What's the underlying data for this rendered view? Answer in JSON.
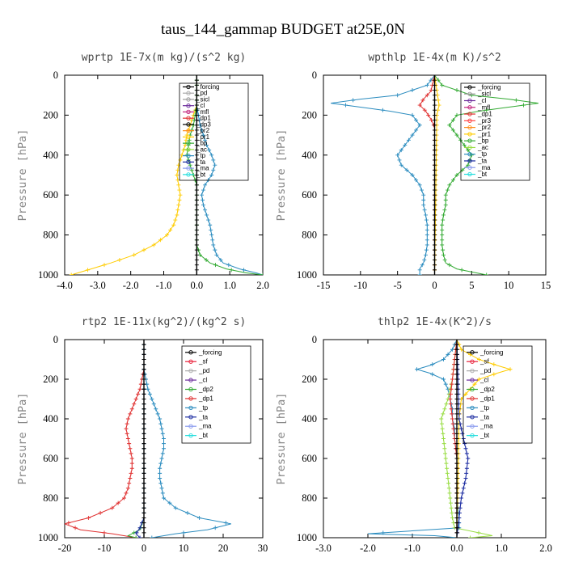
{
  "title": "taus_144_gammap  BUDGET at25E,0N",
  "colors": {
    "_forcing": "#000000",
    "_sf": "#e8203a",
    "_pd": "#aaaaaa",
    "_sicl": "#999999",
    "_cl": "#6a2a9a",
    "_mfl": "#c0207a",
    "_dp1": "#e03030",
    "_dp2": "#33aa33",
    "_pr3": "#ff4444",
    "_pr2": "#ff8c1a",
    "_pr1": "#ffcc00",
    "_bp": "#33aa33",
    "_ac": "#99dd44",
    "_tp": "#2b8cbf",
    "_ta": "#1a2aa0",
    "_ma": "#8899ee",
    "_bt": "#22dddd"
  },
  "chart_data": [
    {
      "type": "line",
      "title": "wprtp  1E-7x(m kg)/(s^2 kg)",
      "ylabel": "Pressure [hPa]",
      "xlim": [
        -4.0,
        2.0
      ],
      "ylim": [
        1000,
        0
      ],
      "xticks": [
        "-4.0",
        "-3.0",
        "-2.0",
        "-1.0",
        "0.0",
        "1.0",
        "2.0"
      ],
      "yticks": [
        "0",
        "200",
        "400",
        "600",
        "800",
        "1000"
      ],
      "legend": [
        "_forcing",
        "_pd",
        "_sicl",
        "_cl",
        "_mfl",
        "_dp1",
        "_dp3",
        "_pr2",
        "_pr1",
        "_bp",
        "_ac",
        "_tp",
        "_ta",
        "_ma",
        "_bt"
      ],
      "series": [
        {
          "name": "_pr1",
          "p": [
            0,
            150,
            200,
            250,
            300,
            350,
            400,
            450,
            500,
            550,
            600,
            650,
            700,
            750,
            800,
            850,
            900,
            940,
            970,
            990,
            1000
          ],
          "x": [
            0,
            0,
            -0.1,
            -0.2,
            -0.3,
            -0.35,
            -0.45,
            -0.55,
            -0.6,
            -0.55,
            -0.5,
            -0.55,
            -0.6,
            -0.7,
            -0.9,
            -1.3,
            -1.9,
            -2.6,
            -3.2,
            -3.6,
            -3.8
          ]
        },
        {
          "name": "_tp",
          "p": [
            0,
            150,
            200,
            250,
            300,
            350,
            400,
            450,
            500,
            550,
            600,
            650,
            700,
            750,
            800,
            850,
            900,
            940,
            970,
            990,
            1000
          ],
          "x": [
            0,
            0,
            0.05,
            0.1,
            0.2,
            0.3,
            0.45,
            0.55,
            0.45,
            0.25,
            0.15,
            0.2,
            0.3,
            0.4,
            0.45,
            0.5,
            0.6,
            0.8,
            1.3,
            1.8,
            2.0
          ]
        },
        {
          "name": "_bp",
          "p": [
            0,
            150,
            200,
            250,
            300,
            350,
            400,
            450,
            500,
            550,
            600,
            650,
            700,
            750,
            800,
            850,
            900,
            940,
            970,
            990,
            1000
          ],
          "x": [
            0,
            0,
            -0.05,
            -0.1,
            -0.2,
            -0.25,
            -0.3,
            -0.2,
            -0.1,
            0,
            0,
            0,
            0,
            0,
            0,
            0,
            0.1,
            0.4,
            0.9,
            1.5,
            2.0
          ]
        },
        {
          "name": "_forcing",
          "p": [
            0,
            1000
          ],
          "x": [
            0,
            0
          ]
        }
      ]
    },
    {
      "type": "line",
      "title": "wpthlp  1E-4x(m K)/s^2",
      "ylabel": "Pressure [hPa]",
      "xlim": [
        -15,
        15
      ],
      "ylim": [
        1000,
        0
      ],
      "xticks": [
        "-15",
        "-10",
        "-5",
        "0",
        "5",
        "10",
        "15"
      ],
      "yticks": [
        "0",
        "200",
        "400",
        "600",
        "800",
        "1000"
      ],
      "legend": [
        "_forcing",
        "_sicl",
        "_cl",
        "_mfl",
        "_dp1",
        "_pr3",
        "_pr2",
        "_pr1",
        "_bp",
        "_ac",
        "_tp",
        "_ta",
        "_ma",
        "_bt"
      ],
      "series": [
        {
          "name": "_tp",
          "p": [
            0,
            50,
            100,
            120,
            140,
            160,
            180,
            200,
            250,
            300,
            350,
            400,
            450,
            500,
            550,
            600,
            650,
            700,
            750,
            800,
            850,
            900,
            940,
            970,
            1000
          ],
          "x": [
            0,
            -1,
            -5,
            -10,
            -14,
            -10,
            -6,
            -3,
            -2,
            -3,
            -4,
            -5,
            -4.5,
            -3,
            -2,
            -1.5,
            -1.5,
            -1.2,
            -1,
            -1,
            -1,
            -1.2,
            -1.5,
            -2,
            -2
          ]
        },
        {
          "name": "_bp",
          "p": [
            0,
            50,
            100,
            120,
            140,
            160,
            180,
            200,
            250,
            300,
            350,
            400,
            450,
            500,
            550,
            600,
            650,
            700,
            750,
            800,
            850,
            900,
            940,
            970,
            1000
          ],
          "x": [
            0,
            1,
            5,
            10,
            14,
            10,
            6,
            3,
            2,
            3,
            4,
            5,
            4.5,
            3,
            2,
            1.5,
            1.5,
            1.2,
            1,
            1,
            1,
            1.2,
            1.5,
            3,
            7
          ]
        },
        {
          "name": "_dp1",
          "p": [
            0,
            80,
            120,
            150,
            180,
            220,
            260,
            1000
          ],
          "x": [
            0,
            -0.5,
            -1.5,
            -2,
            -1.2,
            -0.5,
            0,
            0
          ]
        },
        {
          "name": "_pr1",
          "p": [
            0,
            100,
            150,
            200,
            1000
          ],
          "x": [
            0,
            0.4,
            0.6,
            0.3,
            0
          ]
        },
        {
          "name": "_forcing",
          "p": [
            0,
            1000
          ],
          "x": [
            0,
            0
          ]
        }
      ]
    },
    {
      "type": "line",
      "title": "rtp2  1E-11x(kg^2)/(kg^2 s)",
      "ylabel": "Pressure [hPa]",
      "xlim": [
        -20,
        30
      ],
      "ylim": [
        1000,
        0
      ],
      "xticks": [
        "-20",
        "-10",
        "0",
        "10",
        "20",
        "30"
      ],
      "yticks": [
        "0",
        "200",
        "400",
        "600",
        "800",
        "1000"
      ],
      "legend": [
        "_forcing",
        "_sf",
        "_pd",
        "_cl",
        "_dp2",
        "_dp1",
        "_tp",
        "_ta",
        "_ma",
        "_bt"
      ],
      "series": [
        {
          "name": "_dp1",
          "p": [
            0,
            150,
            200,
            250,
            300,
            350,
            400,
            450,
            500,
            550,
            600,
            650,
            700,
            750,
            800,
            850,
            900,
            930,
            960,
            980,
            1000
          ],
          "x": [
            0,
            0,
            -0.5,
            -1,
            -2,
            -3,
            -4,
            -4.5,
            -4,
            -3.5,
            -3,
            -3,
            -3.5,
            -4,
            -5,
            -8,
            -14,
            -20,
            -16,
            -8,
            -2
          ]
        },
        {
          "name": "_tp",
          "p": [
            0,
            150,
            200,
            250,
            300,
            350,
            400,
            450,
            500,
            550,
            600,
            650,
            700,
            750,
            800,
            850,
            900,
            930,
            960,
            980,
            1000
          ],
          "x": [
            0,
            0,
            0.5,
            1,
            2,
            3,
            4,
            4.5,
            5,
            5,
            4.5,
            4,
            4,
            4.5,
            5,
            8,
            14,
            22,
            16,
            8,
            2
          ]
        },
        {
          "name": "_dp2",
          "p": [
            0,
            900,
            960,
            980,
            990,
            1000
          ],
          "x": [
            0,
            0,
            -1,
            -3,
            -4,
            -2
          ]
        },
        {
          "name": "_ta",
          "p": [
            0,
            900,
            950,
            980,
            1000
          ],
          "x": [
            0,
            0,
            -1,
            -2,
            -1
          ]
        },
        {
          "name": "_forcing",
          "p": [
            0,
            1000
          ],
          "x": [
            0,
            0
          ]
        }
      ]
    },
    {
      "type": "line",
      "title": "thlp2  1E-4x(K^2)/s",
      "ylabel": "Pressure [hPa]",
      "xlim": [
        -3.0,
        2.0
      ],
      "ylim": [
        1000,
        0
      ],
      "xticks": [
        "-3.0",
        "-2.0",
        "-1.0",
        "0.0",
        "1.0",
        "2.0"
      ],
      "yticks": [
        "0",
        "200",
        "400",
        "600",
        "800",
        "1000"
      ],
      "legend": [
        "_forcing",
        "_sf",
        "_pd",
        "_cl",
        "_dp2",
        "_dp1",
        "_tp",
        "_ta",
        "_ma",
        "_bt"
      ],
      "series": [
        {
          "name": "_tp",
          "p": [
            0,
            50,
            100,
            130,
            150,
            170,
            200,
            250,
            300,
            350,
            400,
            450,
            500,
            600,
            700,
            800,
            900,
            950,
            980,
            990,
            1000
          ],
          "x": [
            0,
            -0.1,
            -0.3,
            -0.6,
            -0.9,
            -0.6,
            -0.3,
            -0.2,
            -0.15,
            -0.1,
            -0.1,
            -0.05,
            -0.05,
            0,
            0,
            0,
            0.05,
            0.05,
            -2.0,
            -0.5,
            0
          ]
        },
        {
          "name": "_pr1",
          "p": [
            0,
            50,
            100,
            130,
            150,
            170,
            200,
            250,
            300,
            400,
            1000
          ],
          "x": [
            0,
            0.1,
            0.5,
            0.9,
            1.2,
            0.9,
            0.5,
            0.3,
            0.1,
            0.05,
            0
          ]
        },
        {
          "name": "_ac",
          "p": [
            0,
            100,
            200,
            300,
            400,
            500,
            600,
            700,
            800,
            900,
            950,
            980,
            990,
            1000
          ],
          "x": [
            0,
            -0.05,
            -0.1,
            -0.2,
            -0.35,
            -0.3,
            -0.25,
            -0.2,
            -0.15,
            -0.1,
            -0.05,
            0.6,
            0.8,
            0.3
          ]
        },
        {
          "name": "_dp1",
          "p": [
            0,
            100,
            200,
            300,
            400,
            500,
            600,
            700,
            800,
            900,
            1000
          ],
          "x": [
            0,
            -0.05,
            -0.1,
            -0.15,
            -0.1,
            -0.05,
            0,
            0,
            0,
            0,
            0
          ]
        },
        {
          "name": "_ta",
          "p": [
            0,
            400,
            500,
            600,
            700,
            800,
            1000
          ],
          "x": [
            0,
            0.05,
            0.15,
            0.25,
            0.2,
            0.1,
            0
          ]
        },
        {
          "name": "_forcing",
          "p": [
            0,
            1000
          ],
          "x": [
            0,
            0
          ]
        }
      ]
    }
  ]
}
